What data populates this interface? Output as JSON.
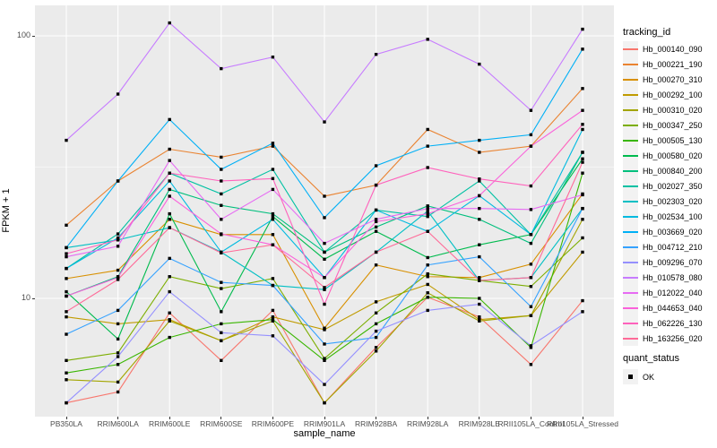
{
  "axes": {
    "x": {
      "title": "sample_name",
      "categories": [
        "PB350LA",
        "RRIM600LA",
        "RRIM600LE",
        "RRIM600SE",
        "RRIM600PE",
        "RRIM901LA",
        "RRIM928BA",
        "RRIM928LA",
        "RRIM928LE",
        "RRII105LA_Control",
        "RRII105LA_Stressed"
      ]
    },
    "y": {
      "title": "FPKM + 1",
      "ticks": [
        "100",
        "10"
      ],
      "scale": "log10"
    }
  },
  "legend": {
    "tracking_title": "tracking_id",
    "quant_title": "quant_status",
    "quant_ok_label": "OK",
    "key_fill": "#F2F2F2"
  },
  "style": {
    "panel_bg": "#EBEBEB",
    "grid_color": "#FFFFFF",
    "tick_label_color": "#4D4D4D",
    "marker": "filled-black-square"
  },
  "chart_data": {
    "type": "line",
    "title": "",
    "xlabel": "sample_name",
    "ylabel": "FPKM + 1",
    "yscale": "log10",
    "ylim": [
      3.5,
      131
    ],
    "grid": "white-on-gray",
    "legend_position": "right",
    "categories": [
      "PB350LA",
      "RRIM600LA",
      "RRIM600LE",
      "RRIM600SE",
      "RRIM600PE",
      "RRIM901LA",
      "RRIM928BA",
      "RRIM928LA",
      "RRIM928LE",
      "RRII105LA_Control",
      "RRII105LA_Stressed"
    ],
    "series": [
      {
        "name": "Hb_000140_090",
        "color": "#F8766D",
        "values": [
          4.0,
          4.4,
          8.8,
          5.8,
          9.0,
          4.0,
          6.5,
          10.1,
          8.5,
          5.6,
          9.8
        ]
      },
      {
        "name": "Hb_000221_190",
        "color": "#EA8331",
        "values": [
          19,
          28,
          37,
          34.5,
          38,
          24.5,
          27,
          44,
          36,
          38,
          63
        ]
      },
      {
        "name": "Hb_000270_310",
        "color": "#D89000",
        "values": [
          11.9,
          12.8,
          20,
          17.5,
          17.5,
          7.7,
          13.4,
          12.1,
          12,
          13.5,
          25
        ]
      },
      {
        "name": "Hb_000292_100",
        "color": "#C09B00",
        "values": [
          8.5,
          8.0,
          8.3,
          6.9,
          8.5,
          7.6,
          9.7,
          11.3,
          8.3,
          8.6,
          15
        ]
      },
      {
        "name": "Hb_000310_020",
        "color": "#A3A500",
        "values": [
          4.9,
          4.8,
          8.2,
          6.9,
          8.2,
          4.0,
          6.3,
          10.5,
          8.2,
          8.6,
          20
        ]
      },
      {
        "name": "Hb_000347_250",
        "color": "#7CAE00",
        "values": [
          5.8,
          6.2,
          12.1,
          10.9,
          11.9,
          5.9,
          8.8,
          12.4,
          11.7,
          11.1,
          17
        ]
      },
      {
        "name": "Hb_000505_130",
        "color": "#39B600",
        "values": [
          5.2,
          5.6,
          7.1,
          8.0,
          8.3,
          5.8,
          8.0,
          10.1,
          10.0,
          6.5,
          30
        ]
      },
      {
        "name": "Hb_000580_020",
        "color": "#00BB4E",
        "values": [
          10.6,
          7.0,
          21,
          8.9,
          20.5,
          14.1,
          18.0,
          14.3,
          16.0,
          17.5,
          34
        ]
      },
      {
        "name": "Hb_000840_200",
        "color": "#00BF7D",
        "values": [
          10.2,
          12.1,
          26,
          22.6,
          21,
          15,
          18.7,
          22.5,
          20,
          16.2,
          36
        ]
      },
      {
        "name": "Hb_002027_350",
        "color": "#00C1A3",
        "values": [
          13,
          17.6,
          30,
          25,
          31,
          15,
          21.7,
          20.5,
          28,
          17.5,
          36
        ]
      },
      {
        "name": "Hb_002303_020",
        "color": "#00BFC4",
        "values": [
          15.6,
          16.7,
          18.6,
          15,
          11.2,
          10.8,
          15,
          21.5,
          11.7,
          12,
          22
        ]
      },
      {
        "name": "Hb_002534_100",
        "color": "#00BAE0",
        "values": [
          13,
          17,
          28,
          15,
          20,
          12,
          21.7,
          18,
          24.6,
          17.5,
          44
        ]
      },
      {
        "name": "Hb_003669_020",
        "color": "#00B0F6",
        "values": [
          15.6,
          28,
          48,
          31,
          39,
          20.3,
          32,
          38,
          40,
          42,
          89
        ]
      },
      {
        "name": "Hb_004712_210",
        "color": "#35A2FF",
        "values": [
          7.3,
          9.0,
          14.2,
          11.5,
          11.2,
          6.7,
          7.1,
          13.4,
          14.4,
          9.3,
          22
        ]
      },
      {
        "name": "Hb_009296_070",
        "color": "#9590FF",
        "values": [
          4.0,
          6.0,
          10.6,
          7.4,
          7.2,
          4.7,
          7.5,
          9.0,
          9.5,
          6.6,
          8.9
        ]
      },
      {
        "name": "Hb_010578_080",
        "color": "#C77CFF",
        "values": [
          40,
          60,
          112,
          75,
          83,
          47,
          85,
          97,
          78,
          52,
          106
        ]
      },
      {
        "name": "Hb_012022_040",
        "color": "#E76BF3",
        "values": [
          14.4,
          15.8,
          33.5,
          20,
          26,
          16.2,
          20,
          22,
          22,
          21.8,
          24.8
        ]
      },
      {
        "name": "Hb_044653_040",
        "color": "#FA62DB",
        "values": [
          10.2,
          12.0,
          24.5,
          17.6,
          16,
          12,
          19.6,
          21,
          24.6,
          38,
          52
        ]
      },
      {
        "name": "Hb_062226_130",
        "color": "#FF62BC",
        "values": [
          14.8,
          16.7,
          30,
          28,
          28.6,
          9.5,
          27,
          31.5,
          28.5,
          26.8,
          46
        ]
      },
      {
        "name": "Hb_163256_020",
        "color": "#FF6A98",
        "values": [
          8.9,
          11.8,
          18.6,
          14.9,
          16,
          11,
          15,
          18,
          11.7,
          12,
          33
        ]
      }
    ]
  }
}
